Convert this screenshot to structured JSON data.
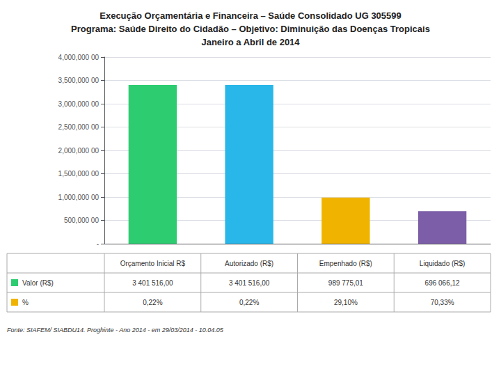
{
  "chart_data": {
    "type": "bar",
    "title": "Execução Orçamentária e Financeira – Saúde Consolidado UG 305599\nPrograma: Saúde Direito do Cidadão – Objetivo: Diminuição das Doenças Tropicais\nJaneiro a Abril de 2014",
    "categories": [
      "Orçamento Inicial R$",
      "Autorizado (R$)",
      "Empenhado (R$)",
      "Liquidado (R$)"
    ],
    "values": [
      3401516.0,
      3401516.0,
      989775.01,
      696066.12
    ],
    "colors": [
      "#2ecc71",
      "#29b6e8",
      "#f0b400",
      "#7b5ea7"
    ],
    "ylim": [
      0,
      4000000
    ],
    "yticks": [
      {
        "value": 0,
        "label": "-"
      },
      {
        "value": 500000,
        "label": "500,000 00"
      },
      {
        "value": 1000000,
        "label": "1,000,000 00"
      },
      {
        "value": 1500000,
        "label": "1,500,000 00"
      },
      {
        "value": 2000000,
        "label": "2,000,000 00"
      },
      {
        "value": 2500000,
        "label": "2,500,000 00"
      },
      {
        "value": 3000000,
        "label": "3,000,000 00"
      },
      {
        "value": 3500000,
        "label": "3,500,000 00"
      },
      {
        "value": 4000000,
        "label": "4,000,000 00"
      }
    ],
    "grid": true,
    "tick_labels": "y",
    "table": [
      {
        "label": "Valor (R$)",
        "color": "#2ecc71",
        "cells": [
          "3 401 516,00",
          "3 401 516,00",
          "989 775,01",
          "696 066,12"
        ]
      },
      {
        "label": "%",
        "color": "#f0b400",
        "cells": [
          "0,22%",
          "0,22%",
          "29,10%",
          "70,33%"
        ]
      }
    ],
    "annotations": [
      "Fonte: SIAFEM/ SIABDU14. Proghinte - Ano 2014 - em 29/03/2014 - 10.04.05"
    ]
  }
}
